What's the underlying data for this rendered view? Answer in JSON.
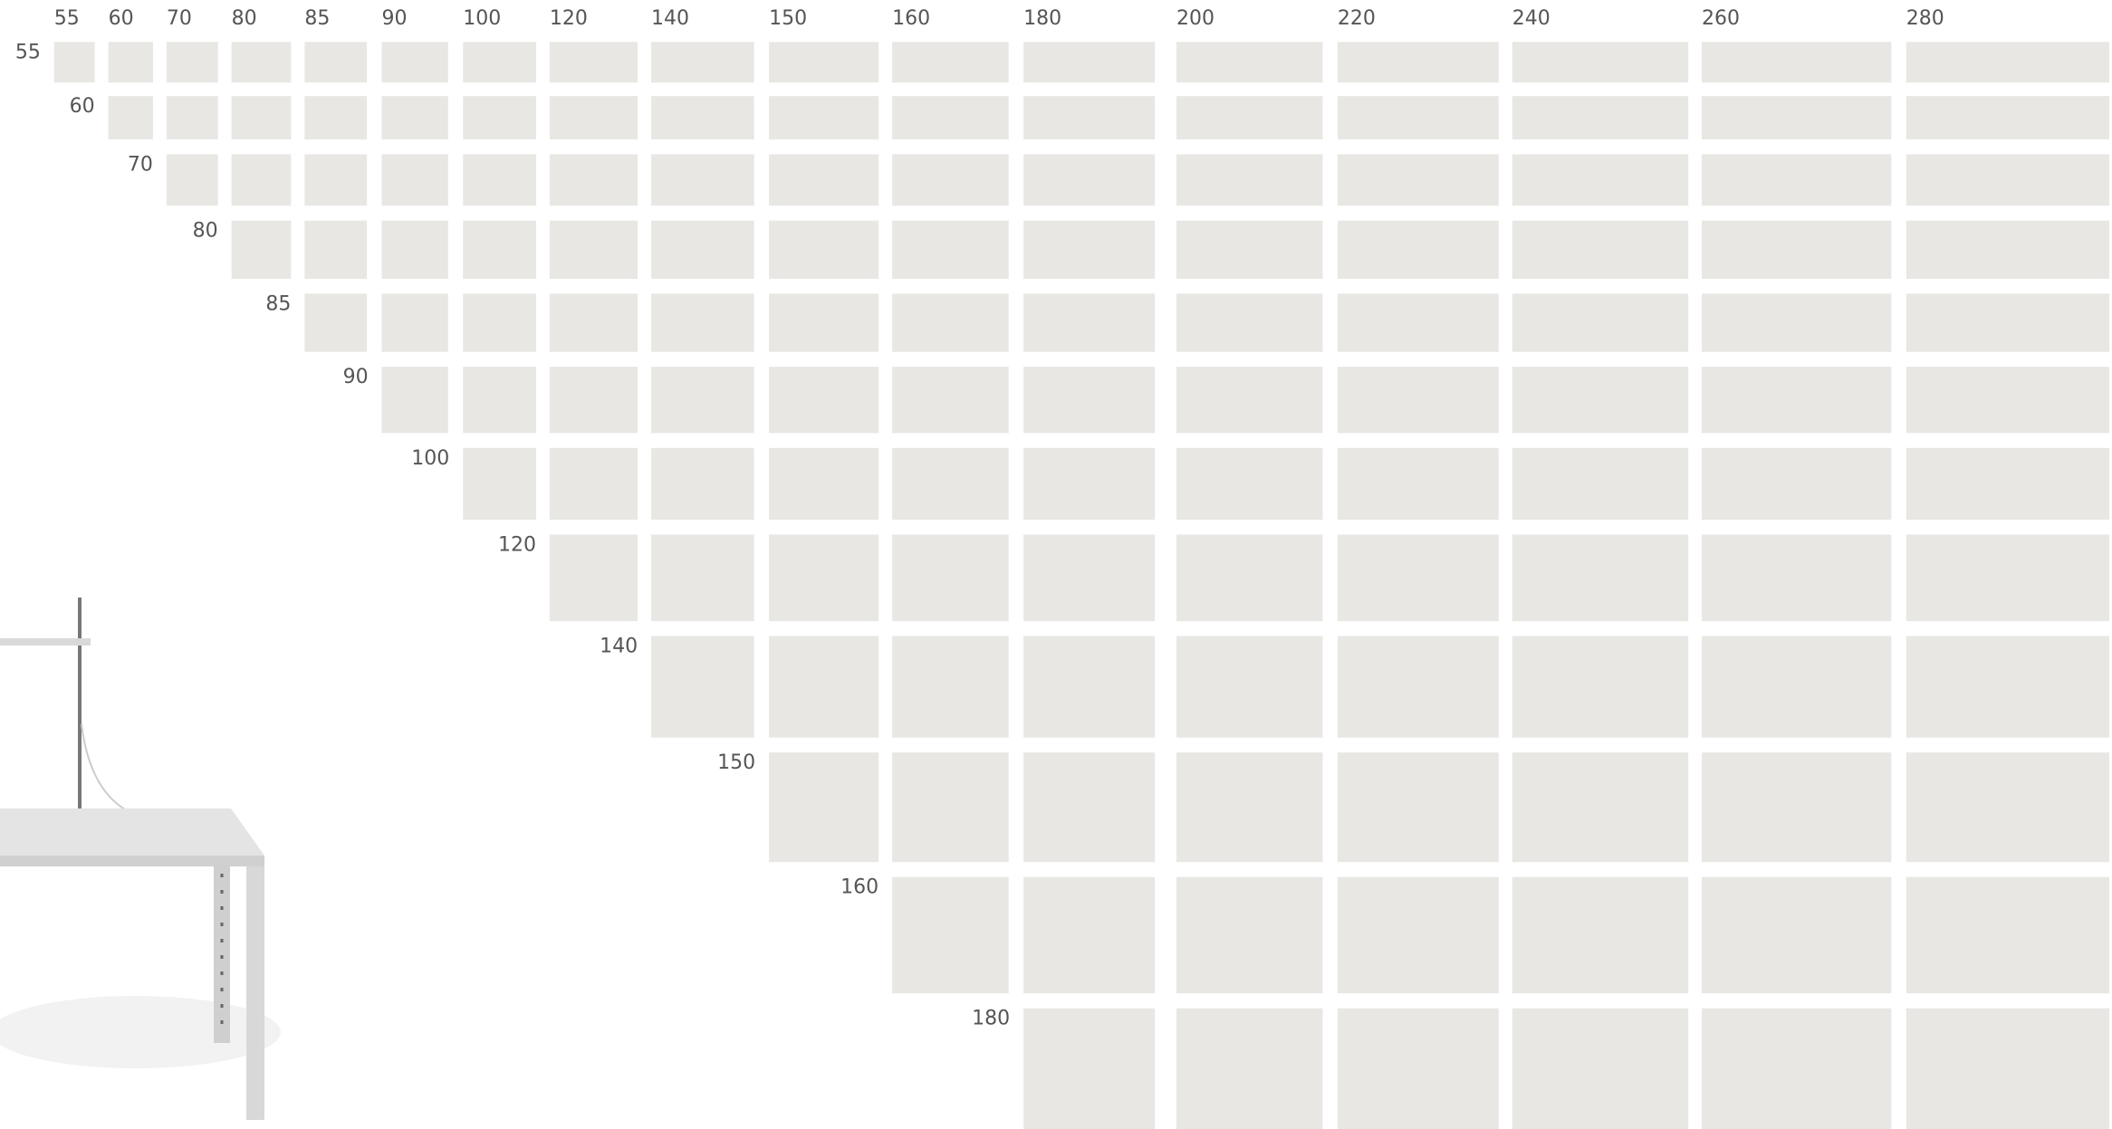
{
  "columns": [
    "55",
    "60",
    "70",
    "80",
    "85",
    "90",
    "100",
    "120",
    "140",
    "150",
    "160",
    "180",
    "200",
    "220",
    "240",
    "260",
    "280"
  ],
  "rows": [
    "55",
    "60",
    "70",
    "80",
    "85",
    "90",
    "100",
    "120",
    "140",
    "150",
    "160",
    "180"
  ]
}
